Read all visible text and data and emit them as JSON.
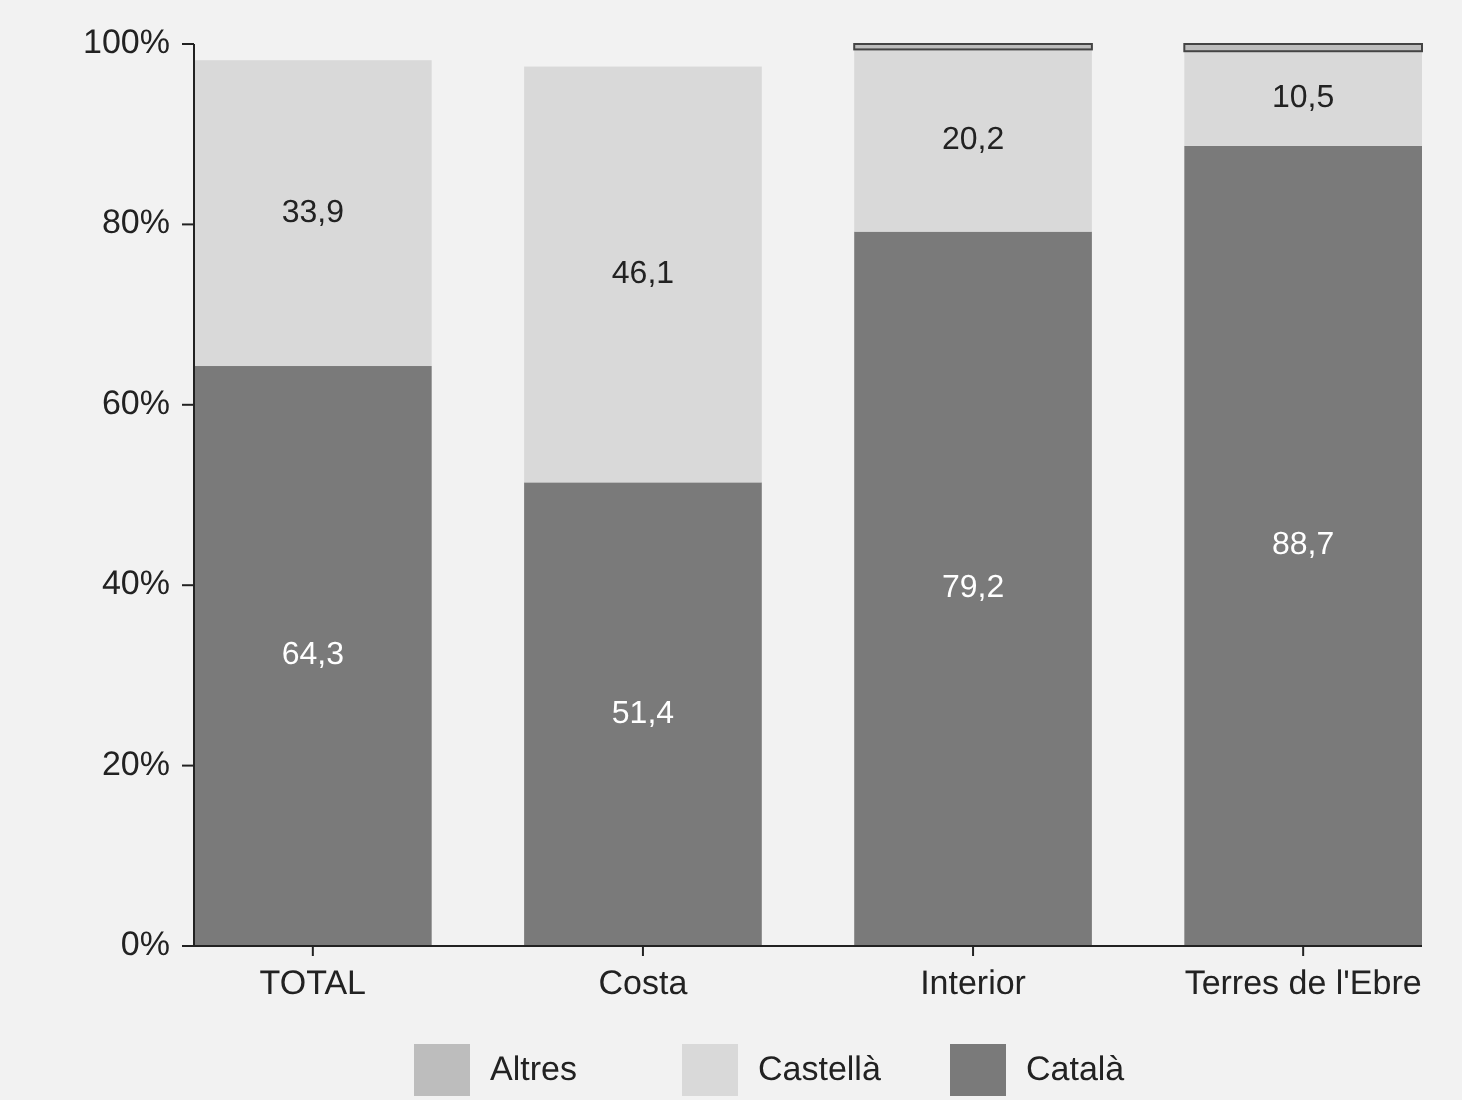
{
  "chart_data": {
    "type": "bar",
    "stacked": true,
    "categories": [
      "TOTAL",
      "Costa",
      "Interior",
      "Terres de l'Ebre"
    ],
    "series": [
      {
        "name": "Català",
        "color": "#7a7a7a",
        "values": [
          64.3,
          51.4,
          79.2,
          88.7
        ],
        "value_labels": [
          "64,3",
          "51,4",
          "79,2",
          "88,7"
        ]
      },
      {
        "name": "Castellà",
        "color": "#d9d9d9",
        "values": [
          33.9,
          46.1,
          20.2,
          10.5
        ],
        "value_labels": [
          "33,9",
          "46,1",
          "20,2",
          "10,5"
        ]
      },
      {
        "name": "Altres",
        "color": "#bdbdbd",
        "values": [
          null,
          null,
          0.6,
          0.8
        ]
      }
    ],
    "ylim": [
      0,
      100
    ],
    "yticks": [
      {
        "value": 0,
        "label": "0%"
      },
      {
        "value": 20,
        "label": "20%"
      },
      {
        "value": 40,
        "label": "40%"
      },
      {
        "value": 60,
        "label": "60%"
      },
      {
        "value": 80,
        "label": "80%"
      },
      {
        "value": 100,
        "label": "100%"
      }
    ],
    "legend": "bottom",
    "grid": false
  }
}
